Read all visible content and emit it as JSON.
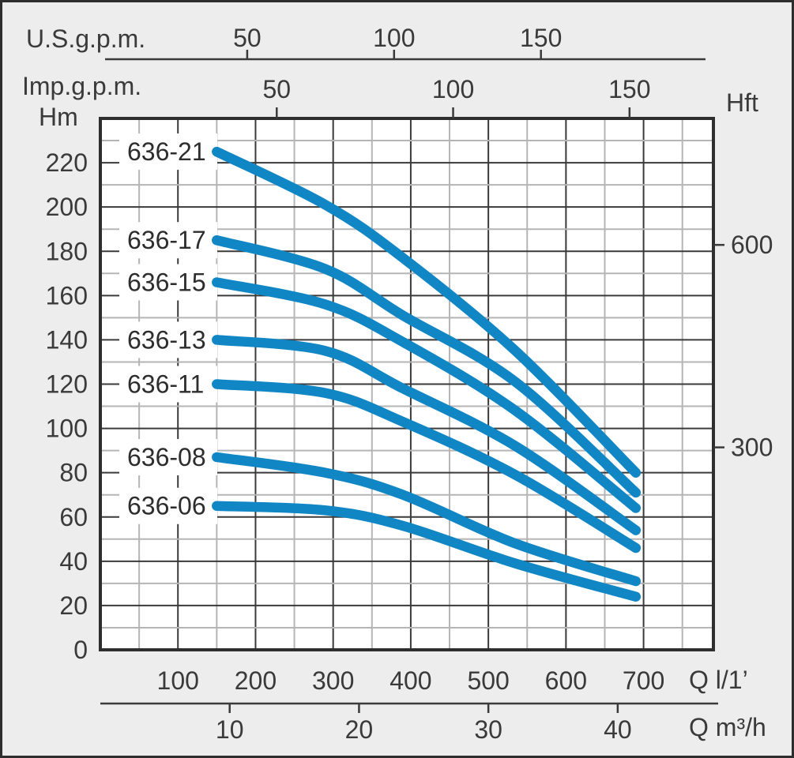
{
  "chart_data": {
    "type": "line",
    "title": "",
    "x_unit": "Q l/1’",
    "y_unit": "Hm",
    "x_range": [
      0,
      790
    ],
    "y_range": [
      0,
      240
    ],
    "grid": {
      "x_minor_step": 50,
      "x_major_step": 100,
      "y_minor_step": 10,
      "y_major_step": 20,
      "grid_on": true
    },
    "axes": {
      "us_gpm": {
        "label": "U.S.g.p.m.",
        "ticks": [
          50,
          100,
          150
        ],
        "l_per_min_per_unit": 3.785
      },
      "imp_gpm": {
        "label": "Imp.g.p.m.",
        "ticks": [
          50,
          100,
          150
        ],
        "l_per_min_per_unit": 4.546
      },
      "hm": {
        "label": "Hm",
        "ticks": [
          0,
          20,
          40,
          60,
          80,
          100,
          120,
          140,
          160,
          180,
          200,
          220
        ]
      },
      "hft": {
        "label": "Hft",
        "ticks": [
          300,
          600
        ],
        "m_per_ft": 0.3048
      },
      "q_l_min": {
        "label": "Q l/1’",
        "ticks": [
          100,
          200,
          300,
          400,
          500,
          600,
          700
        ]
      },
      "q_m3_h": {
        "label": "Q m³/h",
        "ticks": [
          10,
          20,
          30,
          40
        ],
        "l_per_min_per_unit": 16.667
      }
    },
    "series": [
      {
        "name": "636-21",
        "points": [
          [
            150,
            225
          ],
          [
            290,
            201
          ],
          [
            390,
            177
          ],
          [
            535,
            135
          ],
          [
            690,
            80
          ]
        ]
      },
      {
        "name": "636-17",
        "points": [
          [
            150,
            185
          ],
          [
            290,
            172
          ],
          [
            390,
            151
          ],
          [
            535,
            121
          ],
          [
            690,
            71
          ]
        ]
      },
      {
        "name": "636-15",
        "points": [
          [
            150,
            166
          ],
          [
            290,
            156
          ],
          [
            390,
            139
          ],
          [
            535,
            108
          ],
          [
            690,
            64
          ]
        ]
      },
      {
        "name": "636-13",
        "points": [
          [
            150,
            140
          ],
          [
            290,
            135
          ],
          [
            390,
            118
          ],
          [
            535,
            92
          ],
          [
            690,
            54
          ]
        ]
      },
      {
        "name": "636-11",
        "points": [
          [
            150,
            120
          ],
          [
            290,
            116
          ],
          [
            390,
            103
          ],
          [
            535,
            79
          ],
          [
            690,
            46
          ]
        ]
      },
      {
        "name": "636-08",
        "points": [
          [
            150,
            87
          ],
          [
            290,
            80
          ],
          [
            390,
            70
          ],
          [
            535,
            48
          ],
          [
            690,
            31
          ]
        ]
      },
      {
        "name": "636-06",
        "points": [
          [
            150,
            65
          ],
          [
            290,
            63
          ],
          [
            390,
            56
          ],
          [
            535,
            39
          ],
          [
            690,
            24
          ]
        ]
      }
    ],
    "legend_position": "labels-inside-plot-left",
    "colors": {
      "curve": "#1186c5",
      "grid_major": "#3a3a3a",
      "grid_minor": "#b5b5b5",
      "plot_bg": "#ffffff",
      "frame_bg": "#ededed",
      "border": "#2e2e2e",
      "text": "#3a3a3a",
      "curve_label_text": "#2d2d2d"
    }
  }
}
